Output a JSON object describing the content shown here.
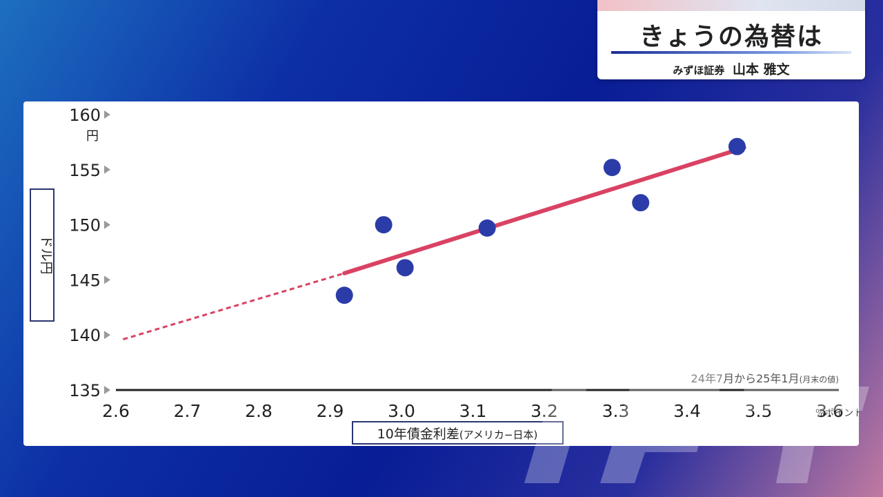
{
  "header": {
    "title": "きょうの為替は",
    "affiliation": "みずほ証券",
    "presenter": "山本 雅文"
  },
  "colors": {
    "point": "#2b3ca8",
    "trend": "#d94263",
    "axis": "#222222"
  },
  "chart_data": {
    "type": "scatter",
    "y_axis_label": "ドル円",
    "y_unit": "円",
    "x_axis_label": "10年債金利差",
    "x_axis_label_note": "(アメリカ−日本)",
    "x_unit": "%ポイント",
    "period_note": "24年7月から25年1月",
    "period_note_small": "(月末の値)",
    "xlim": [
      2.6,
      3.6
    ],
    "ylim": [
      135,
      160
    ],
    "x_ticks": [
      "2.6",
      "2.7",
      "2.8",
      "2.9",
      "3.0",
      "3.1",
      "3.2",
      "3.3",
      "3.4",
      "3.5",
      "3.6"
    ],
    "y_ticks": [
      "135",
      "140",
      "145",
      "150",
      "155",
      "160"
    ],
    "points": [
      {
        "x": 2.92,
        "y": 143.6
      },
      {
        "x": 2.975,
        "y": 150.0
      },
      {
        "x": 3.005,
        "y": 146.1
      },
      {
        "x": 3.12,
        "y": 149.7
      },
      {
        "x": 3.295,
        "y": 155.2
      },
      {
        "x": 3.335,
        "y": 152.0
      },
      {
        "x": 3.47,
        "y": 157.1
      }
    ],
    "trendline": {
      "solid": [
        [
          2.92,
          145.6
        ],
        [
          3.48,
          157.0
        ]
      ],
      "dashed": [
        [
          2.61,
          139.6
        ],
        [
          2.92,
          145.6
        ]
      ]
    }
  }
}
